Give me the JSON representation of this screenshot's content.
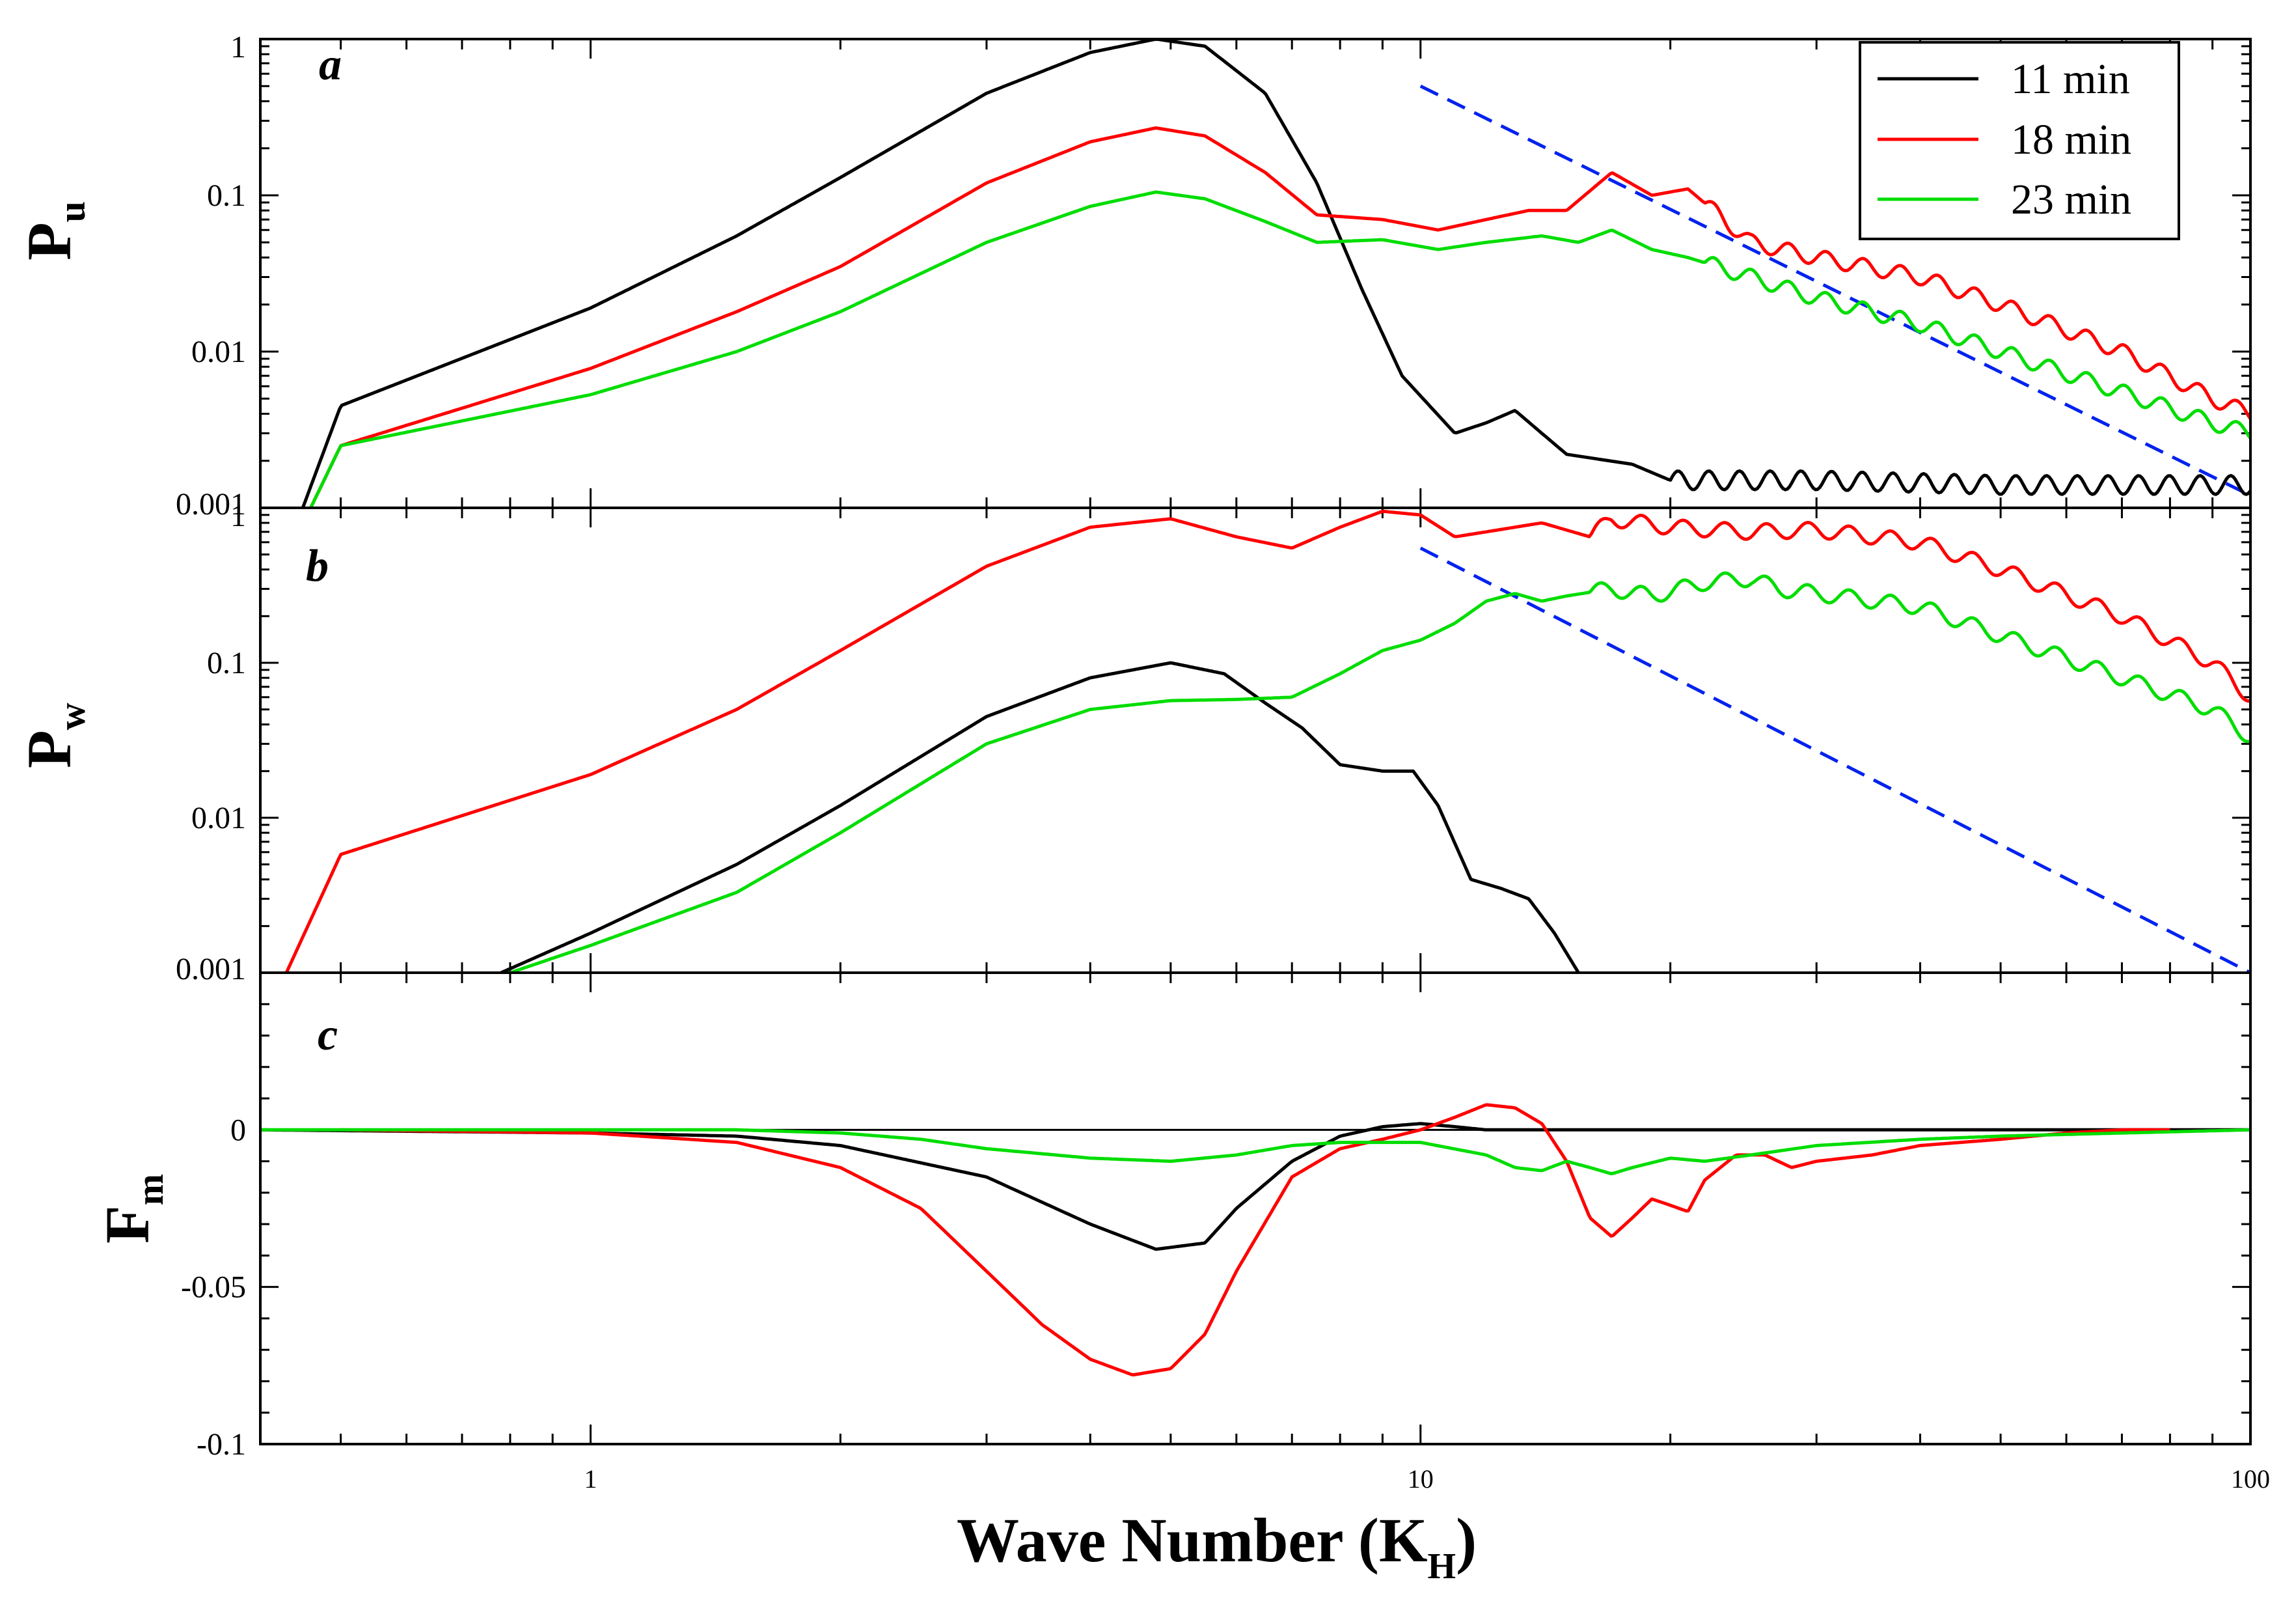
{
  "chart_data": {
    "type": "line",
    "x_scale": "log",
    "xlim": [
      0.4,
      100
    ],
    "xlabel": "Wave Number (K",
    "xlabel_sub": "H",
    "xlabel_close": ")",
    "x_ticks": [
      {
        "value": 1,
        "label": "1"
      },
      {
        "value": 10,
        "label": "10"
      },
      {
        "value": 100,
        "label": "100"
      }
    ],
    "colors": {
      "11 min": "#000000",
      "18 min": "#ff0000",
      "23 min": "#00dd00",
      "slope": "#0022ee"
    },
    "legend": {
      "placement": "top-right",
      "entries": [
        {
          "name": "11 min",
          "color": "#000000"
        },
        {
          "name": "18 min",
          "color": "#ff0000"
        },
        {
          "name": "23 min",
          "color": "#00dd00"
        }
      ]
    },
    "panels": [
      {
        "id": "a",
        "letter": "a",
        "ylabel": "P",
        "ylabel_sub": "u",
        "y_scale": "log",
        "ylim": [
          0.001,
          1
        ],
        "y_ticks": [
          {
            "value": 1,
            "label": "1"
          },
          {
            "value": 0.1,
            "label": "0.1"
          },
          {
            "value": 0.01,
            "label": "0.01"
          },
          {
            "value": 0.001,
            "label": "0.001"
          }
        ],
        "reference_line": {
          "x": [
            10,
            100
          ],
          "y": [
            0.5,
            0.0012
          ],
          "style": "dashed"
        },
        "series": [
          {
            "name": "11 min",
            "x": [
              0.45,
              0.5,
              1,
              1.5,
              2,
              3,
              4,
              4.8,
              5.5,
              6.5,
              7.5,
              8.5,
              9.5,
              11,
              12,
              13,
              14,
              15,
              18,
              20,
              30,
              50,
              100
            ],
            "y": [
              0.001,
              0.0045,
              0.019,
              0.055,
              0.13,
              0.45,
              0.82,
              1.0,
              0.9,
              0.45,
              0.12,
              0.025,
              0.007,
              0.003,
              0.0035,
              0.0042,
              0.003,
              0.0022,
              0.0019,
              0.0015,
              0.0015,
              0.0014,
              0.0014
            ],
            "oscillation": {
              "from": 20,
              "to": 100,
              "amplitude": 0.06,
              "period": 0.037
            }
          },
          {
            "name": "18 min",
            "x": [
              0.46,
              0.5,
              1,
              1.5,
              2,
              3,
              4,
              4.8,
              5.5,
              6.5,
              7.5,
              9,
              10.5,
              12,
              13.5,
              15,
              17,
              19,
              21,
              25,
              30,
              40,
              50,
              70,
              90,
              100
            ],
            "y": [
              0.001,
              0.0025,
              0.0078,
              0.018,
              0.035,
              0.12,
              0.22,
              0.27,
              0.24,
              0.14,
              0.075,
              0.07,
              0.06,
              0.07,
              0.08,
              0.08,
              0.14,
              0.1,
              0.11,
              0.05,
              0.04,
              0.03,
              0.02,
              0.01,
              0.005,
              0.004
            ],
            "oscillation": {
              "from": 22,
              "to": 100,
              "amplitude": 0.05,
              "period": 0.045
            }
          },
          {
            "name": "23 min",
            "x": [
              0.46,
              0.5,
              1,
              1.5,
              2,
              3,
              4,
              4.8,
              5.5,
              6.5,
              7.5,
              9,
              10.5,
              12,
              14,
              15.5,
              17,
              19,
              21,
              25,
              30,
              40,
              50,
              70,
              90,
              100
            ],
            "y": [
              0.001,
              0.0025,
              0.0053,
              0.01,
              0.018,
              0.05,
              0.085,
              0.105,
              0.095,
              0.068,
              0.05,
              0.052,
              0.045,
              0.05,
              0.055,
              0.05,
              0.06,
              0.045,
              0.04,
              0.03,
              0.022,
              0.015,
              0.01,
              0.0055,
              0.0035,
              0.003
            ],
            "oscillation": {
              "from": 22,
              "to": 100,
              "amplitude": 0.05,
              "period": 0.045
            }
          }
        ]
      },
      {
        "id": "b",
        "letter": "b",
        "ylabel": "P",
        "ylabel_sub": "w",
        "y_scale": "log",
        "ylim": [
          0.001,
          1
        ],
        "y_ticks": [
          {
            "value": 1,
            "label": "1"
          },
          {
            "value": 0.1,
            "label": "0.1"
          },
          {
            "value": 0.01,
            "label": "0.01"
          },
          {
            "value": 0.001,
            "label": "0.001"
          }
        ],
        "reference_line": {
          "x": [
            10,
            100
          ],
          "y": [
            0.55,
            0.001
          ],
          "style": "dashed"
        },
        "series": [
          {
            "name": "11 min",
            "x": [
              0.78,
              1,
              1.5,
              2,
              3,
              4,
              5,
              5.8,
              6.5,
              7.2,
              8,
              9,
              9.8,
              10.5,
              11.5,
              12.5,
              13.5,
              14.5,
              15.5
            ],
            "y": [
              0.001,
              0.0018,
              0.005,
              0.012,
              0.045,
              0.08,
              0.1,
              0.085,
              0.055,
              0.038,
              0.022,
              0.02,
              0.02,
              0.012,
              0.004,
              0.0035,
              0.003,
              0.0018,
              0.001
            ]
          },
          {
            "name": "18 min",
            "x": [
              0.43,
              0.5,
              1,
              1.5,
              2,
              3,
              4,
              5,
              6,
              7,
              8,
              9,
              10,
              11,
              12,
              14,
              16,
              17,
              20,
              25,
              30,
              40,
              50,
              70,
              90,
              100
            ],
            "y": [
              0.001,
              0.0058,
              0.019,
              0.05,
              0.12,
              0.42,
              0.75,
              0.85,
              0.65,
              0.55,
              0.75,
              0.95,
              0.9,
              0.65,
              0.7,
              0.8,
              0.65,
              0.85,
              0.75,
              0.7,
              0.72,
              0.6,
              0.4,
              0.2,
              0.1,
              0.06
            ],
            "oscillation": {
              "from": 16,
              "to": 100,
              "amplitude": 0.05,
              "period": 0.05
            }
          },
          {
            "name": "23 min",
            "x": [
              0.8,
              1,
              1.5,
              2,
              3,
              4,
              5,
              6,
              7,
              8,
              9,
              10,
              11,
              12,
              13,
              14,
              15,
              17,
              19,
              22,
              25,
              27,
              30,
              40,
              50,
              70,
              90,
              100
            ],
            "y": [
              0.001,
              0.0015,
              0.0033,
              0.008,
              0.03,
              0.05,
              0.057,
              0.058,
              0.06,
              0.085,
              0.12,
              0.14,
              0.18,
              0.25,
              0.28,
              0.25,
              0.27,
              0.3,
              0.27,
              0.33,
              0.35,
              0.3,
              0.28,
              0.23,
              0.15,
              0.08,
              0.05,
              0.033
            ],
            "oscillation": {
              "from": 16,
              "to": 100,
              "amplitude": 0.05,
              "period": 0.05
            }
          }
        ]
      },
      {
        "id": "c",
        "letter": "c",
        "ylabel": "F",
        "ylabel_sub": "m",
        "y_scale": "linear",
        "ylim": [
          -0.1,
          0.05
        ],
        "y_ticks": [
          {
            "value": 0,
            "label": "0"
          },
          {
            "value": -0.05,
            "label": "-0.05"
          },
          {
            "value": -0.1,
            "label": "-0.1"
          }
        ],
        "series": [
          {
            "name": "11 min",
            "x": [
              0.4,
              1,
              1.5,
              2,
              3,
              4,
              4.8,
              5.5,
              6,
              7,
              8,
              9,
              10,
              11,
              12,
              15,
              20,
              50,
              100
            ],
            "y": [
              0,
              -0.001,
              -0.002,
              -0.005,
              -0.015,
              -0.03,
              -0.038,
              -0.036,
              -0.025,
              -0.01,
              -0.002,
              0.001,
              0.002,
              0.001,
              0,
              0,
              0,
              0,
              0
            ]
          },
          {
            "name": "18 min",
            "x": [
              0.5,
              1,
              1.5,
              2,
              2.5,
              3,
              3.5,
              4,
              4.5,
              5,
              5.5,
              6,
              7,
              8,
              9,
              10,
              11,
              12,
              13,
              14,
              15,
              16,
              17,
              18,
              19,
              20,
              21,
              22,
              24,
              26,
              28,
              30,
              35,
              40,
              50,
              60,
              70,
              80
            ],
            "y": [
              0,
              -0.001,
              -0.004,
              -0.012,
              -0.025,
              -0.045,
              -0.062,
              -0.073,
              -0.078,
              -0.076,
              -0.065,
              -0.045,
              -0.015,
              -0.006,
              -0.003,
              0,
              0.004,
              0.008,
              0.007,
              0.002,
              -0.01,
              -0.028,
              -0.034,
              -0.028,
              -0.022,
              -0.024,
              -0.026,
              -0.016,
              -0.008,
              -0.008,
              -0.012,
              -0.01,
              -0.008,
              -0.005,
              -0.003,
              -0.001,
              0,
              0
            ]
          },
          {
            "name": "23 min",
            "x": [
              0.4,
              1.5,
              2,
              2.5,
              3,
              4,
              5,
              6,
              7,
              8,
              9,
              10,
              12,
              13,
              14,
              15,
              16,
              17,
              18,
              20,
              22,
              25,
              30,
              40,
              50,
              70,
              100
            ],
            "y": [
              0,
              0,
              -0.001,
              -0.003,
              -0.006,
              -0.009,
              -0.01,
              -0.008,
              -0.005,
              -0.004,
              -0.004,
              -0.004,
              -0.008,
              -0.012,
              -0.013,
              -0.01,
              -0.012,
              -0.014,
              -0.012,
              -0.009,
              -0.01,
              -0.008,
              -0.005,
              -0.003,
              -0.002,
              -0.001,
              0
            ]
          }
        ]
      }
    ]
  }
}
